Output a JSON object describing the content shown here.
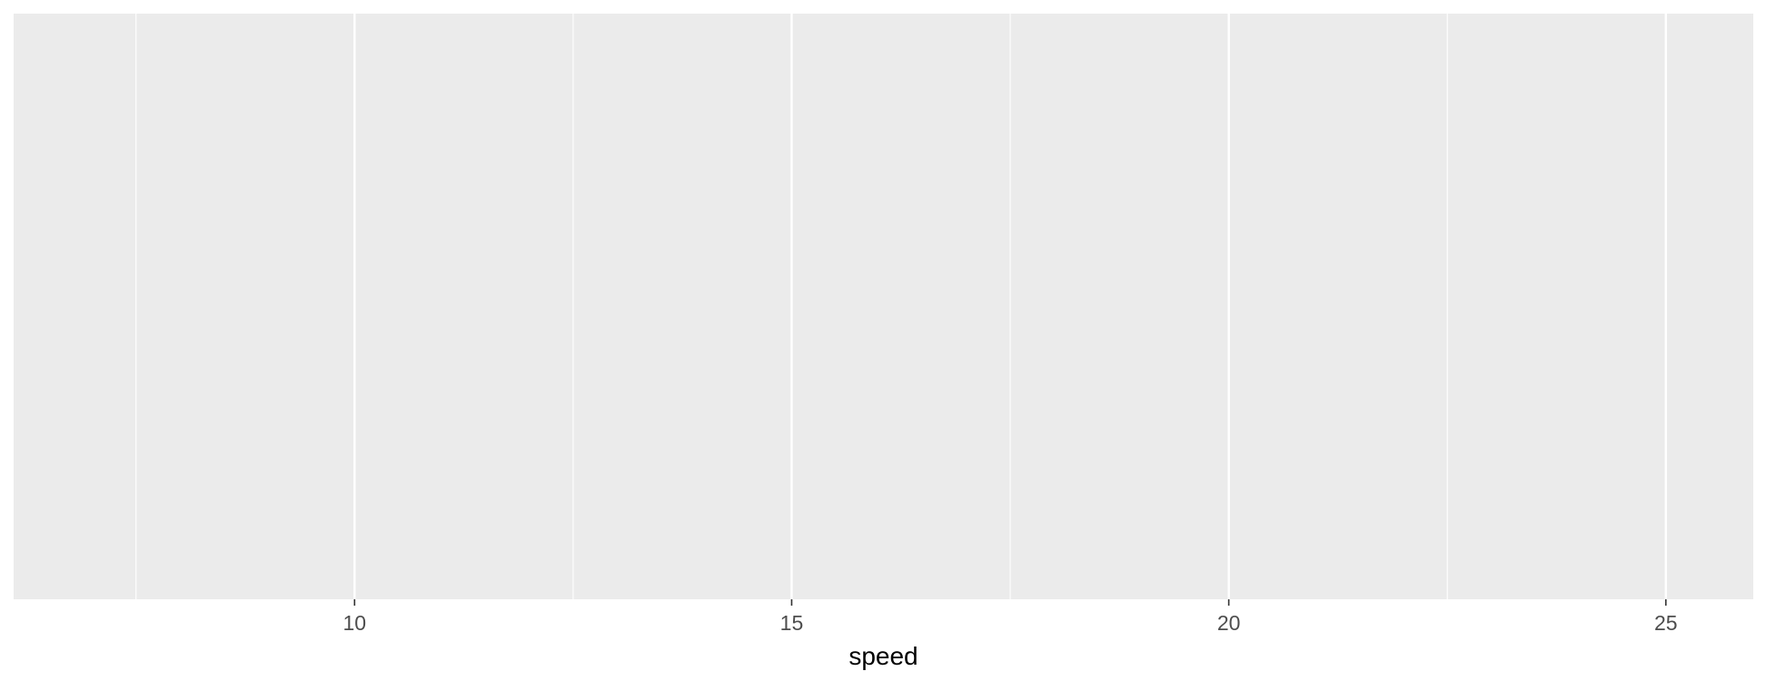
{
  "chart_data": {
    "type": "scatter",
    "title": "",
    "xlabel": "speed",
    "ylabel": "",
    "xlim": [
      6.1,
      26.0
    ],
    "x_major_ticks": [
      10,
      15,
      20,
      25
    ],
    "x_minor_ticks": [
      7.5,
      12.5,
      17.5,
      22.5
    ],
    "x_tick_labels": [
      "10",
      "15",
      "20",
      "25"
    ],
    "y_ticks": [],
    "series": [],
    "grid": true,
    "legend": "none",
    "colors": {
      "panel_background": "#EBEBEB",
      "grid_line": "#FFFFFF",
      "tick_label": "#4D4D4D",
      "axis_title": "#000000"
    }
  }
}
